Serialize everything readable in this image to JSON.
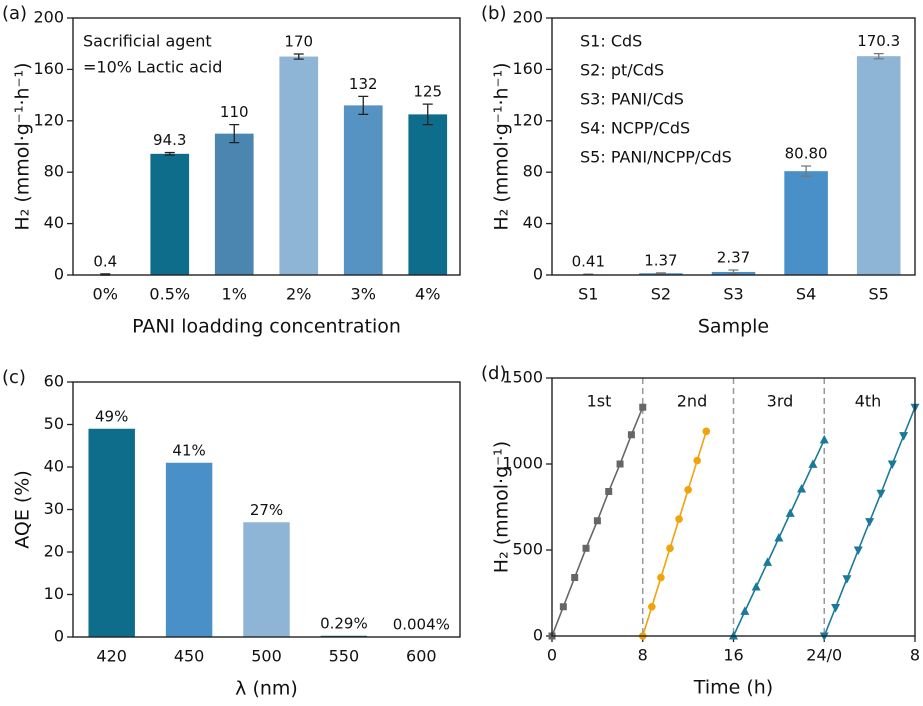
{
  "chart_data": [
    {
      "type": "bar",
      "panel_label": "(a)",
      "xlabel": "PANI loadding concentration",
      "ylabel": "H₂ (mmol·g⁻¹·h⁻¹)",
      "annotations": [
        "Sacrificial agent",
        "=10% Lactic acid"
      ],
      "categories": [
        "0%",
        "0.5%",
        "1%",
        "2%",
        "3%",
        "4%"
      ],
      "values": [
        0.4,
        94.3,
        110,
        170,
        132,
        125
      ],
      "errors": [
        0.5,
        1,
        7,
        2,
        7,
        8
      ],
      "colors": [
        "#0f6d8c",
        "#0f6d8c",
        "#4a86b0",
        "#8fb5d6",
        "#5693c2",
        "#0f6d8c"
      ],
      "ylim": [
        0,
        200
      ],
      "yticks": [
        0,
        40,
        80,
        120,
        160,
        200
      ]
    },
    {
      "type": "bar",
      "panel_label": "(b)",
      "xlabel": "Sample",
      "ylabel": "H₂ (mmol·g⁻¹·h⁻¹)",
      "annotations": [
        "S1: CdS",
        "S2: pt/CdS",
        "S3: PANI/CdS",
        "S4: NCPP/CdS",
        "S5: PANI/NCPP/CdS"
      ],
      "categories": [
        "S1",
        "S2",
        "S3",
        "S4",
        "S5"
      ],
      "values": [
        0.41,
        1.37,
        2.37,
        80.8,
        170.3
      ],
      "value_labels": [
        "0.41",
        "1.37",
        "2.37",
        "80.80",
        "170.3"
      ],
      "errors": [
        0.3,
        0.3,
        1.5,
        4,
        2
      ],
      "colors": [
        "#4a90c8",
        "#4a90c8",
        "#4a90c8",
        "#4a90c8",
        "#8fb5d6"
      ],
      "ylim": [
        0,
        200
      ],
      "yticks": [
        0,
        40,
        80,
        120,
        160,
        200
      ]
    },
    {
      "type": "bar",
      "panel_label": "(c)",
      "xlabel": "λ (nm)",
      "ylabel": "AQE (%)",
      "categories": [
        "420",
        "450",
        "500",
        "550",
        "600"
      ],
      "values": [
        49,
        41,
        27,
        0.29,
        0.004
      ],
      "value_labels": [
        "49%",
        "41%",
        "27%",
        "0.29%",
        "0.004%"
      ],
      "colors": [
        "#0f6d8c",
        "#4a90c8",
        "#8fb5d6",
        "#0f6d8c",
        "#0f6d8c"
      ],
      "ylim": [
        0,
        60
      ],
      "yticks": [
        0,
        10,
        20,
        30,
        40,
        50,
        60
      ]
    },
    {
      "type": "line",
      "panel_label": "(d)",
      "xlabel": "Time (h)",
      "ylabel": "H₂ (mmol·g⁻¹)",
      "annotations": [
        "1st",
        "2nd",
        "3rd",
        "4th"
      ],
      "vlines": [
        8,
        16,
        24
      ],
      "xlim": [
        0,
        32
      ],
      "xticks": [
        0,
        8,
        16,
        {
          "value": 24,
          "label": "24/0"
        },
        {
          "value": 32,
          "label": "8"
        }
      ],
      "ylim": [
        0,
        1500
      ],
      "yticks": [
        0,
        500,
        1000,
        1500
      ],
      "series": [
        {
          "name": "1st",
          "color": "#666666",
          "marker": "square",
          "x": [
            0,
            1,
            2,
            3,
            4,
            5,
            6,
            7,
            8
          ],
          "values": [
            0,
            170,
            340,
            510,
            670,
            840,
            1000,
            1170,
            1330
          ]
        },
        {
          "name": "2nd",
          "color": "#f0a30a",
          "marker": "circle",
          "x": [
            8,
            8.8,
            9.6,
            10.4,
            11.2,
            12,
            12.8,
            13.6
          ],
          "values": [
            0,
            170,
            340,
            510,
            680,
            850,
            1020,
            1190
          ]
        },
        {
          "name": "3rd",
          "color": "#1a7a9a",
          "marker": "triangle-up",
          "x": [
            16,
            17,
            18,
            19,
            20,
            21,
            22,
            23,
            24
          ],
          "values": [
            0,
            143,
            285,
            428,
            570,
            713,
            855,
            998,
            1140
          ]
        },
        {
          "name": "4th",
          "color": "#1a7a9a",
          "marker": "triangle-down",
          "x": [
            24,
            25,
            26,
            27,
            28,
            29,
            30,
            31,
            32
          ],
          "values": [
            0,
            166,
            333,
            500,
            665,
            830,
            1000,
            1165,
            1330
          ]
        }
      ]
    }
  ]
}
